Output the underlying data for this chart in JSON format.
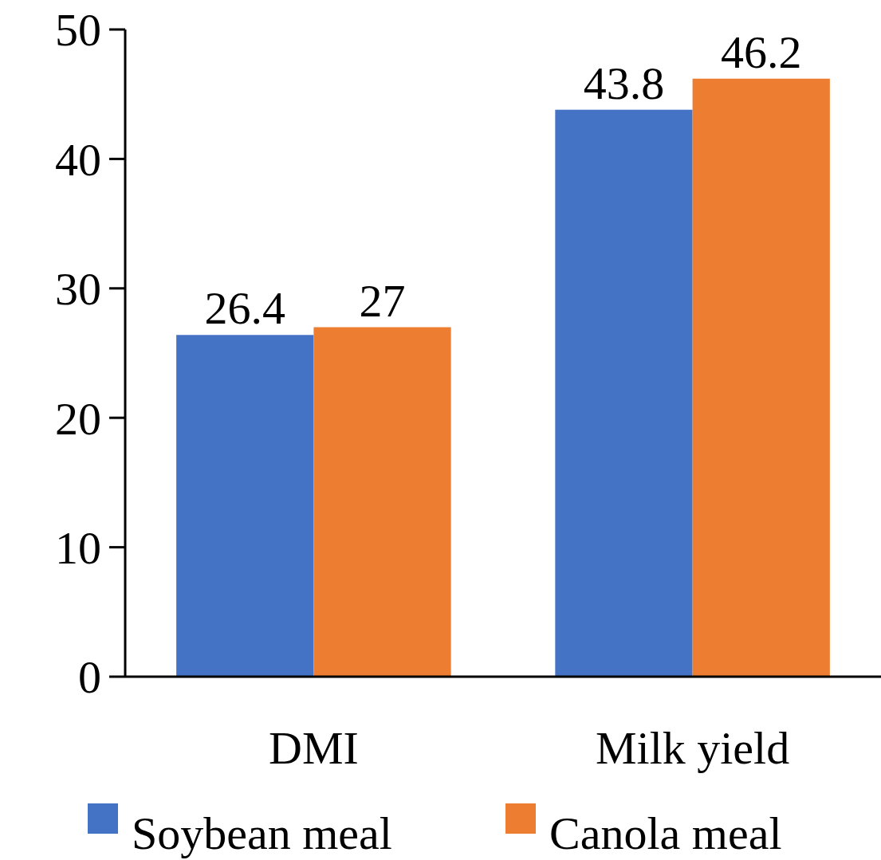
{
  "chart_data": {
    "type": "bar",
    "categories": [
      "DMI",
      "Milk yield"
    ],
    "series": [
      {
        "name": "Soybean meal",
        "color": "#4472c4",
        "values": [
          26.4,
          43.8
        ]
      },
      {
        "name": "Canola meal",
        "color": "#ed7d31",
        "values": [
          27,
          46.2
        ]
      }
    ],
    "ylim": [
      0,
      50
    ],
    "yticks": [
      0,
      10,
      20,
      30,
      40,
      50
    ],
    "data_labels": true,
    "legend": "bottom",
    "grid": false
  }
}
